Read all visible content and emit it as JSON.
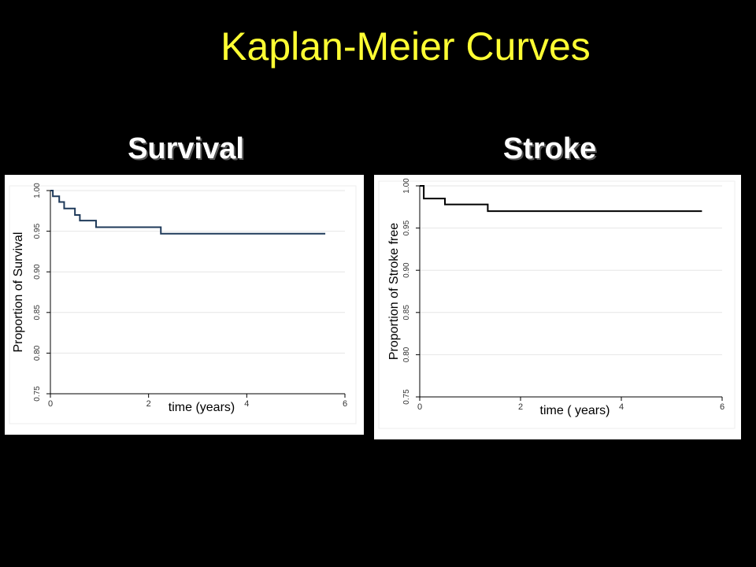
{
  "slide": {
    "title": "Kaplan-Meier Curves"
  },
  "chart_data": [
    {
      "type": "line",
      "heading": "Survival",
      "xlabel": "time (years)",
      "ylabel": "Proportion of Survival",
      "xlim": [
        0,
        6
      ],
      "ylim": [
        0.75,
        1.0
      ],
      "xticks": [
        "0",
        "2",
        "4",
        "6"
      ],
      "yticks": [
        "0.75",
        "0.80",
        "0.85",
        "0.90",
        "0.95",
        "1.00"
      ],
      "grid": true,
      "step": true,
      "line_color": "#1f3a5a",
      "series": [
        {
          "x": [
            0,
            0.05,
            0.18,
            0.28,
            0.5,
            0.6,
            0.93,
            2.25,
            5.6
          ],
          "y": [
            1.0,
            0.993,
            0.986,
            0.978,
            0.97,
            0.963,
            0.955,
            0.947,
            0.947
          ]
        }
      ]
    },
    {
      "type": "line",
      "heading": "Stroke",
      "xlabel": "time ( years)",
      "ylabel": "Proportion of Stroke free",
      "xlim": [
        0,
        6
      ],
      "ylim": [
        0.75,
        1.0
      ],
      "xticks": [
        "0",
        "2",
        "4",
        "6"
      ],
      "yticks": [
        "0.75",
        "0.80",
        "0.85",
        "0.90",
        "0.95",
        "1.00"
      ],
      "grid": true,
      "step": true,
      "line_color": "#000000",
      "series": [
        {
          "x": [
            0,
            0.08,
            0.5,
            1.35,
            5.6
          ],
          "y": [
            1.0,
            0.985,
            0.978,
            0.97,
            0.97
          ]
        }
      ]
    }
  ]
}
